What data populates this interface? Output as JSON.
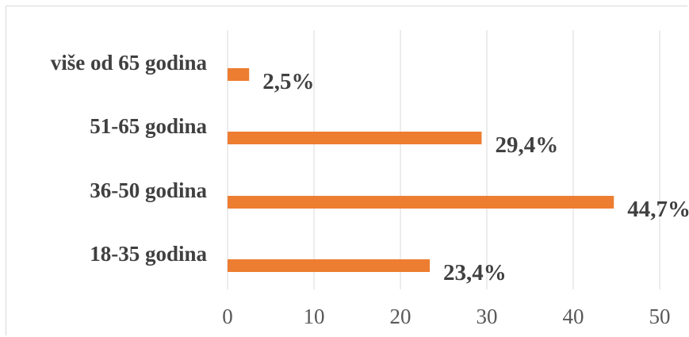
{
  "chart_data": {
    "type": "bar",
    "orientation": "horizontal",
    "categories": [
      "više od 65 godina",
      "51-65 godina",
      "36-50 godina",
      "18-35 godina"
    ],
    "values": [
      2.5,
      29.4,
      44.7,
      23.4
    ],
    "data_labels": [
      "2,5%",
      "29,4%",
      "44,7%",
      "23,4%"
    ],
    "x_ticks": [
      "0",
      "10",
      "20",
      "30",
      "40",
      "50"
    ],
    "xlim": [
      0,
      50
    ],
    "grid": "vertical",
    "bar_color": "#ED7D31",
    "gridline_color": "#d9d9d9"
  }
}
